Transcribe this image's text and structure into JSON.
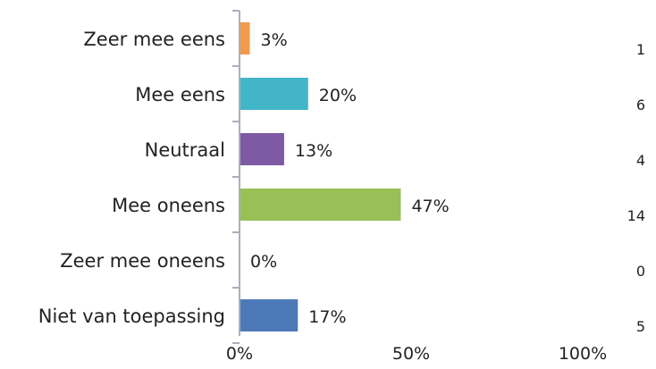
{
  "chart_data": {
    "type": "bar",
    "orientation": "horizontal",
    "categories": [
      "Zeer mee eens",
      "Mee eens",
      "Neutraal",
      "Mee oneens",
      "Zeer mee oneens",
      "Niet van toepassing"
    ],
    "values": [
      3,
      20,
      13,
      47,
      0,
      17
    ],
    "value_labels": [
      "3%",
      "20%",
      "13%",
      "47%",
      "0%",
      "17%"
    ],
    "counts": [
      "1",
      "6",
      "4",
      "14",
      "0",
      "5"
    ],
    "colors": [
      "#f29a4a",
      "#42b6c8",
      "#7d5aa3",
      "#99bf57",
      "#cfcfcf",
      "#4d79b9"
    ],
    "x_ticks": [
      {
        "value": 0,
        "label": "0%"
      },
      {
        "value": 50,
        "label": "50%"
      },
      {
        "value": 100,
        "label": "100%"
      }
    ],
    "xlim": [
      0,
      100
    ],
    "xlabel": "",
    "ylabel": "",
    "title": "",
    "grid": false,
    "axis_color": "#a8b0bb"
  }
}
